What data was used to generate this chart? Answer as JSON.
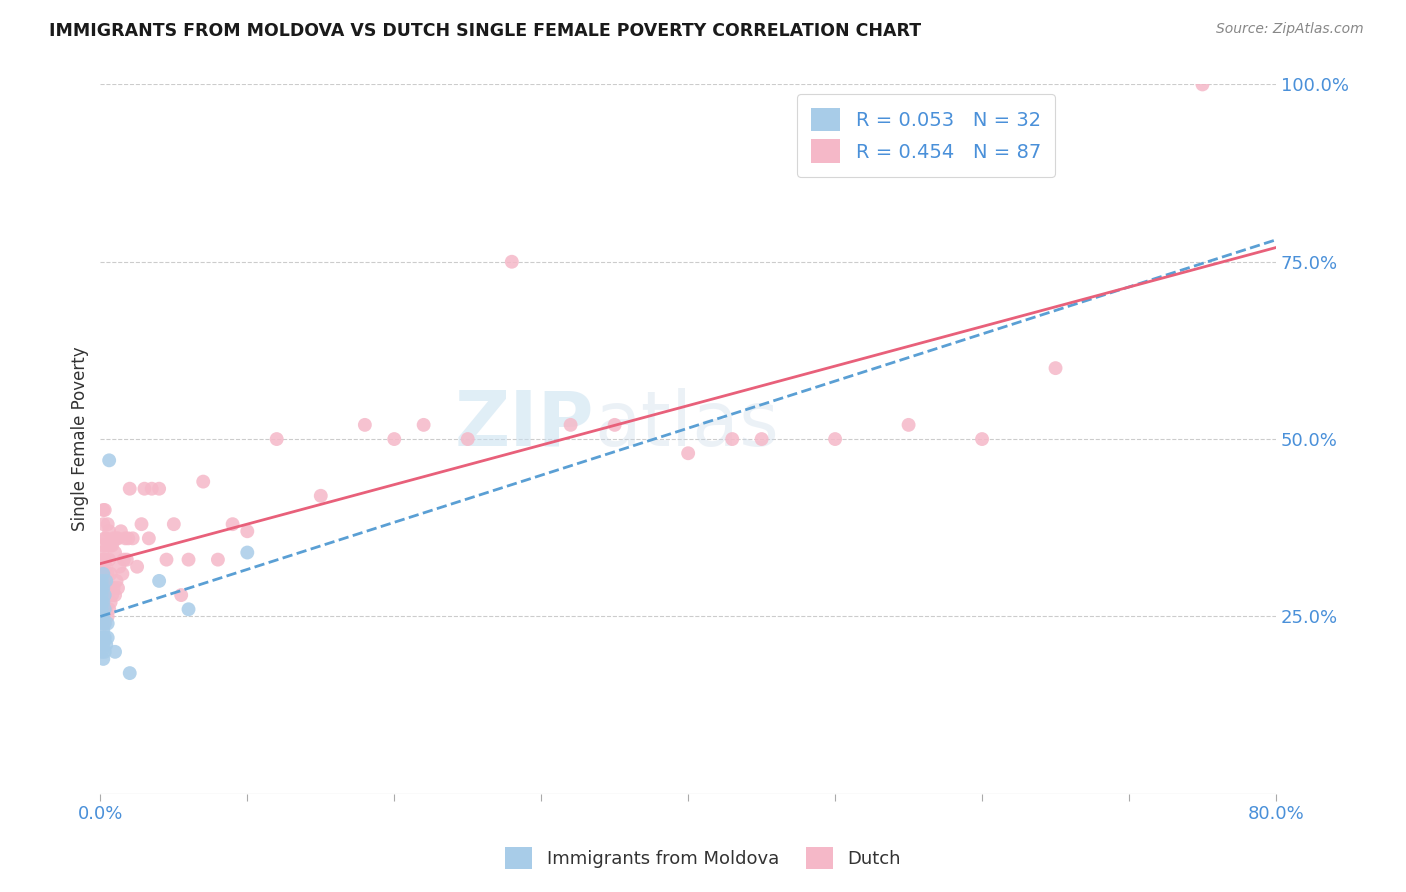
{
  "title": "IMMIGRANTS FROM MOLDOVA VS DUTCH SINGLE FEMALE POVERTY CORRELATION CHART",
  "source": "Source: ZipAtlas.com",
  "ylabel": "Single Female Poverty",
  "legend_r1": "R = 0.053",
  "legend_n1": "N = 32",
  "legend_r2": "R = 0.454",
  "legend_n2": "N = 87",
  "moldova_color": "#a8cce8",
  "dutch_color": "#f5b8c8",
  "moldova_line_color": "#5a9fd4",
  "dutch_line_color": "#e8607a",
  "watermark": "ZIPatlas",
  "xlim": [
    0.0,
    0.8
  ],
  "ylim": [
    0.0,
    1.0
  ],
  "moldova_x": [
    0.001,
    0.001,
    0.001,
    0.001,
    0.001,
    0.001,
    0.001,
    0.001,
    0.001,
    0.002,
    0.002,
    0.002,
    0.002,
    0.002,
    0.002,
    0.002,
    0.002,
    0.003,
    0.003,
    0.003,
    0.003,
    0.003,
    0.004,
    0.004,
    0.005,
    0.005,
    0.006,
    0.01,
    0.02,
    0.04,
    0.06,
    0.1
  ],
  "moldova_y": [
    0.2,
    0.22,
    0.24,
    0.25,
    0.26,
    0.27,
    0.28,
    0.29,
    0.3,
    0.19,
    0.21,
    0.22,
    0.23,
    0.25,
    0.27,
    0.29,
    0.31,
    0.2,
    0.22,
    0.24,
    0.26,
    0.28,
    0.21,
    0.3,
    0.22,
    0.24,
    0.47,
    0.2,
    0.17,
    0.3,
    0.26,
    0.34
  ],
  "dutch_x": [
    0.001,
    0.001,
    0.001,
    0.001,
    0.001,
    0.001,
    0.002,
    0.002,
    0.002,
    0.002,
    0.002,
    0.002,
    0.002,
    0.002,
    0.003,
    0.003,
    0.003,
    0.003,
    0.003,
    0.003,
    0.003,
    0.004,
    0.004,
    0.004,
    0.004,
    0.005,
    0.005,
    0.005,
    0.005,
    0.005,
    0.006,
    0.006,
    0.006,
    0.006,
    0.007,
    0.007,
    0.007,
    0.008,
    0.008,
    0.009,
    0.009,
    0.01,
    0.01,
    0.011,
    0.011,
    0.012,
    0.012,
    0.013,
    0.014,
    0.015,
    0.016,
    0.017,
    0.018,
    0.019,
    0.02,
    0.022,
    0.025,
    0.028,
    0.03,
    0.033,
    0.035,
    0.04,
    0.045,
    0.05,
    0.055,
    0.06,
    0.07,
    0.08,
    0.09,
    0.1,
    0.12,
    0.15,
    0.18,
    0.2,
    0.22,
    0.25,
    0.28,
    0.32,
    0.35,
    0.4,
    0.43,
    0.45,
    0.5,
    0.55,
    0.6,
    0.65,
    0.75
  ],
  "dutch_y": [
    0.25,
    0.27,
    0.28,
    0.3,
    0.32,
    0.34,
    0.25,
    0.27,
    0.29,
    0.31,
    0.33,
    0.35,
    0.38,
    0.4,
    0.24,
    0.26,
    0.28,
    0.3,
    0.33,
    0.36,
    0.4,
    0.26,
    0.29,
    0.32,
    0.36,
    0.25,
    0.28,
    0.31,
    0.35,
    0.38,
    0.26,
    0.29,
    0.33,
    0.37,
    0.27,
    0.31,
    0.35,
    0.28,
    0.35,
    0.29,
    0.36,
    0.28,
    0.34,
    0.3,
    0.36,
    0.29,
    0.36,
    0.32,
    0.37,
    0.31,
    0.33,
    0.36,
    0.33,
    0.36,
    0.43,
    0.36,
    0.32,
    0.38,
    0.43,
    0.36,
    0.43,
    0.43,
    0.33,
    0.38,
    0.28,
    0.33,
    0.44,
    0.33,
    0.38,
    0.37,
    0.5,
    0.42,
    0.52,
    0.5,
    0.52,
    0.5,
    0.75,
    0.52,
    0.52,
    0.48,
    0.5,
    0.5,
    0.5,
    0.52,
    0.5,
    0.6,
    1.0
  ]
}
